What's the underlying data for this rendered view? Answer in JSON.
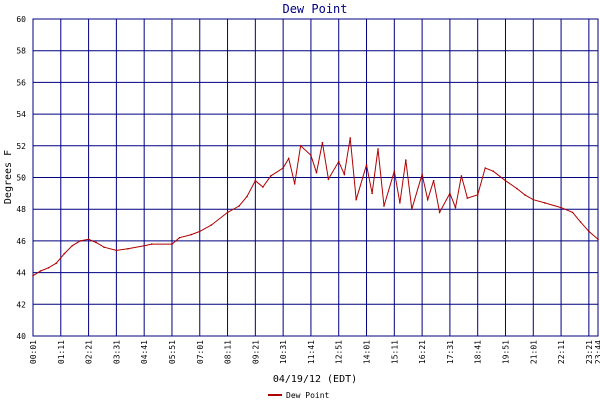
{
  "chart_data": {
    "type": "line",
    "title": "Dew Point",
    "xlabel": "04/19/12 (EDT)",
    "ylabel": "Degrees F",
    "ylim": [
      40,
      60
    ],
    "yticks": [
      "40",
      "42",
      "44",
      "46",
      "48",
      "50",
      "52",
      "54",
      "56",
      "58",
      "60"
    ],
    "xticks": [
      "00:01",
      "01:11",
      "02:21",
      "03:31",
      "04:41",
      "05:51",
      "07:01",
      "08:11",
      "09:21",
      "10:31",
      "11:41",
      "12:51",
      "14:01",
      "15:11",
      "16:21",
      "17:31",
      "18:41",
      "19:51",
      "21:01",
      "22:11",
      "23:21",
      "23:44"
    ],
    "grid": true,
    "legend": "bottom-center",
    "colors": {
      "series": "#b00000",
      "grid": "#000080",
      "title": "#000080"
    },
    "series": [
      {
        "name": "Dew Point",
        "x": [
          "00:01",
          "00:20",
          "00:40",
          "01:00",
          "01:20",
          "01:40",
          "02:00",
          "02:21",
          "02:40",
          "03:00",
          "03:31",
          "04:00",
          "04:41",
          "05:00",
          "05:51",
          "06:10",
          "06:40",
          "07:01",
          "07:30",
          "08:11",
          "08:40",
          "09:00",
          "09:21",
          "09:40",
          "10:00",
          "10:31",
          "10:45",
          "11:00",
          "11:15",
          "11:41",
          "11:55",
          "12:10",
          "12:25",
          "12:51",
          "13:05",
          "13:20",
          "13:35",
          "14:01",
          "14:15",
          "14:30",
          "14:45",
          "15:11",
          "15:25",
          "15:40",
          "15:55",
          "16:21",
          "16:35",
          "16:50",
          "17:05",
          "17:31",
          "17:45",
          "18:00",
          "18:15",
          "18:41",
          "19:00",
          "19:20",
          "19:51",
          "20:20",
          "20:40",
          "21:01",
          "21:30",
          "22:11",
          "22:40",
          "23:00",
          "23:21",
          "23:44"
        ],
        "values": [
          43.8,
          44.1,
          44.3,
          44.6,
          45.2,
          45.7,
          46.0,
          46.1,
          45.9,
          45.6,
          45.4,
          45.5,
          45.7,
          45.8,
          45.8,
          46.2,
          46.4,
          46.6,
          47.0,
          47.8,
          48.2,
          48.8,
          49.8,
          49.4,
          50.1,
          50.6,
          51.2,
          49.6,
          52.0,
          51.4,
          50.3,
          52.2,
          49.9,
          51.0,
          50.2,
          52.5,
          48.6,
          50.8,
          49.0,
          51.8,
          48.2,
          50.4,
          48.4,
          51.1,
          48.0,
          50.2,
          48.6,
          49.8,
          47.8,
          49.0,
          48.1,
          50.1,
          48.7,
          48.9,
          50.6,
          50.4,
          49.8,
          49.3,
          48.9,
          48.6,
          48.4,
          48.1,
          47.8,
          47.2,
          46.6,
          46.1
        ]
      }
    ]
  }
}
